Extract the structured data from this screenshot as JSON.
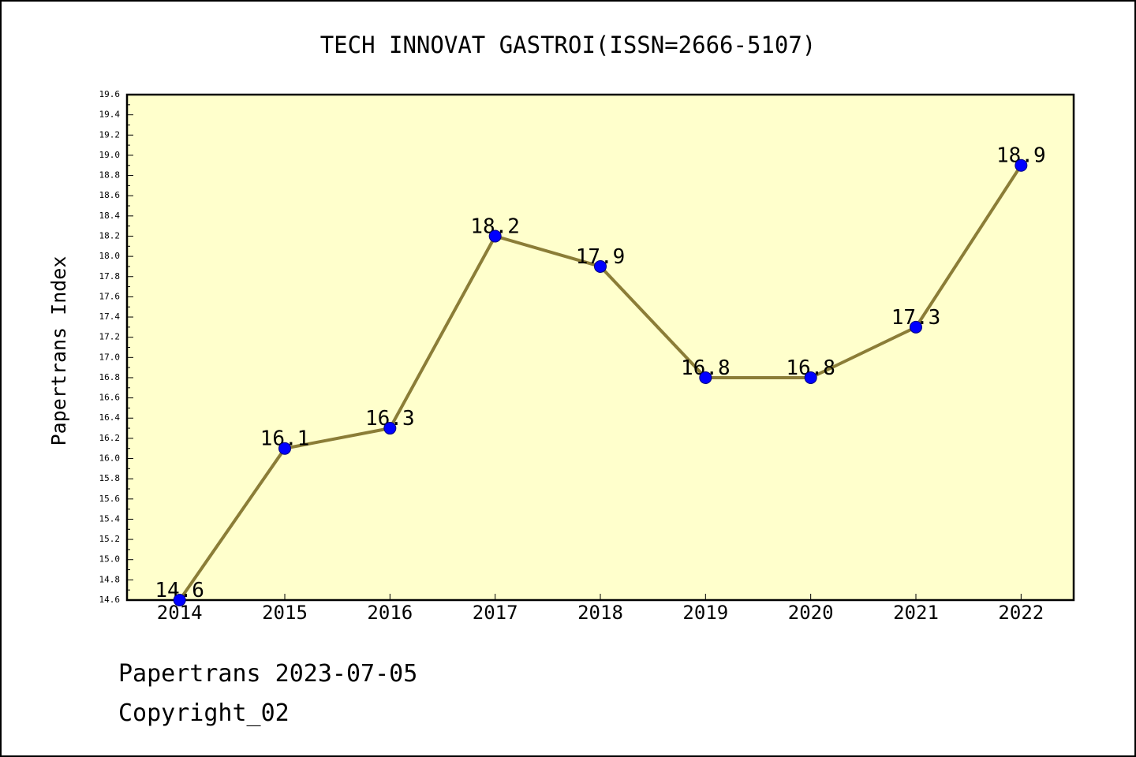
{
  "colors": {
    "page_bg": "#ffffff",
    "plot_bg": "#ffffcc",
    "frame": "#000000",
    "line": "#8b7d37",
    "marker": "#0000ff",
    "marker_edge": "#000080"
  },
  "chart_data": {
    "type": "line",
    "title": "TECH INNOVAT GASTROI(ISSN=2666-5107)",
    "xlabel": "",
    "ylabel": "Papertrans Index",
    "categories": [
      "2014",
      "2015",
      "2016",
      "2017",
      "2018",
      "2019",
      "2020",
      "2021",
      "2022"
    ],
    "series": [
      {
        "values": [
          14.6,
          16.1,
          16.3,
          18.2,
          17.9,
          16.8,
          16.8,
          17.3,
          18.9
        ],
        "data_labels": [
          "14.6",
          "16.1",
          "16.3",
          "18.2",
          "17.9",
          "16.8",
          "16.8",
          "17.3",
          "18.9"
        ]
      }
    ],
    "ylim": [
      14.6,
      19.6
    ],
    "yticks": [
      "14.6",
      "14.8",
      "15.0",
      "15.2",
      "15.4",
      "15.6",
      "15.8",
      "16.0",
      "16.2",
      "16.4",
      "16.6",
      "16.8",
      "17.0",
      "17.2",
      "17.4",
      "17.6",
      "17.8",
      "18.0",
      "18.2",
      "18.4",
      "18.6",
      "18.8",
      "19.0",
      "19.2",
      "19.4",
      "19.6"
    ],
    "grid": false,
    "legend": "none",
    "marker": "circle"
  },
  "footer": {
    "date_line": "Papertrans 2023-07-05",
    "copyright": "Copyright_02"
  }
}
